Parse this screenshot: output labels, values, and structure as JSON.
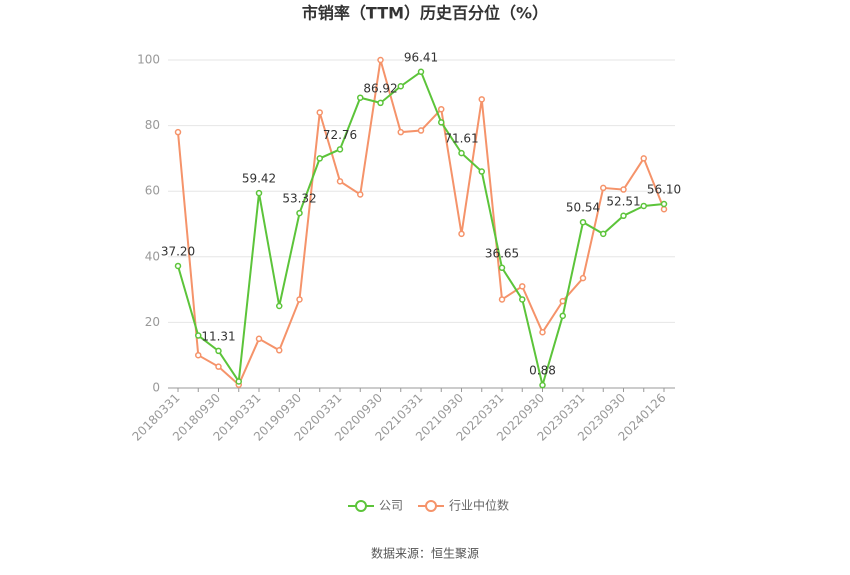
{
  "chart_data": {
    "type": "line",
    "title": "市销率（TTM）历史百分位（%）",
    "categories": [
      "20180331",
      null,
      "20180930",
      null,
      "20190331",
      null,
      "20190930",
      null,
      "20200331",
      null,
      "20200930",
      null,
      "20210331",
      null,
      "20210930",
      null,
      "20220331",
      null,
      "20220930",
      null,
      "20230331",
      null,
      "20230930",
      null,
      "20240126"
    ],
    "series": [
      {
        "name": "公司",
        "color": "#5cc43a",
        "values": [
          37.2,
          16,
          11.31,
          2,
          59.42,
          25,
          53.32,
          70,
          72.76,
          88.5,
          86.92,
          92,
          96.41,
          81,
          71.61,
          66,
          36.65,
          27,
          0.88,
          22,
          50.54,
          47,
          52.51,
          55.5,
          56.1
        ],
        "value_labels": [
          "37.20",
          null,
          "11.31",
          null,
          "59.42",
          null,
          "53.32",
          null,
          "72.76",
          null,
          "86.92",
          null,
          "96.41",
          null,
          "71.61",
          null,
          "36.65",
          null,
          "0.88",
          null,
          "50.54",
          null,
          "52.51",
          null,
          "56.10"
        ]
      },
      {
        "name": "行业中位数",
        "color": "#f5936a",
        "values": [
          78,
          10,
          6.5,
          1,
          15,
          11.5,
          27,
          84,
          63,
          59,
          100,
          78,
          78.5,
          85,
          47,
          88,
          27,
          31,
          17,
          26.5,
          33.5,
          61,
          60.5,
          70,
          54.5
        ]
      }
    ],
    "ylim": [
      0,
      100
    ],
    "yticks": [
      0,
      20,
      40,
      60,
      80,
      100
    ],
    "grid": true,
    "source": "数据来源：恒生聚源"
  }
}
